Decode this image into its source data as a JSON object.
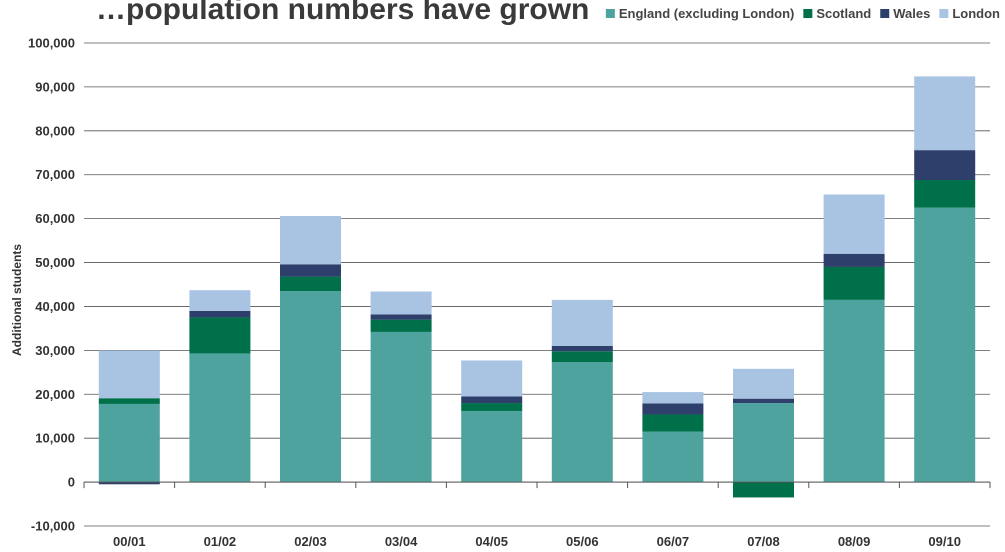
{
  "chart_data": {
    "type": "bar",
    "stacked": true,
    "title": "…population numbers have grown",
    "ylabel": "Additional students",
    "xlabel": "",
    "ylim": [
      -10000,
      100000
    ],
    "yticks": [
      -10000,
      0,
      10000,
      20000,
      30000,
      40000,
      50000,
      60000,
      70000,
      80000,
      90000,
      100000
    ],
    "ytick_labels": [
      "-10,000",
      "0",
      "10,000",
      "20,000",
      "30,000",
      "40,000",
      "50,000",
      "60,000",
      "70,000",
      "80,000",
      "90,000",
      "100,000"
    ],
    "grid": true,
    "legend_position": "top-right",
    "categories": [
      "00/01",
      "01/02",
      "02/03",
      "03/04",
      "04/05",
      "05/06",
      "06/07",
      "07/08",
      "08/09",
      "09/10"
    ],
    "series": [
      {
        "name": "England (excluding London)",
        "color": "#4fa39f",
        "values": [
          17800,
          29300,
          43500,
          34200,
          16200,
          27300,
          11500,
          18000,
          41500,
          62500
        ]
      },
      {
        "name": "Scotland",
        "color": "#00704a",
        "values": [
          1300,
          8200,
          3300,
          2800,
          1800,
          2500,
          3900,
          -3500,
          7500,
          6300
        ]
      },
      {
        "name": "Wales",
        "color": "#2e3f6b",
        "values": [
          -500,
          1500,
          2800,
          1200,
          1500,
          1200,
          2500,
          1000,
          3000,
          6800
        ]
      },
      {
        "name": "London",
        "color": "#a9c4e2",
        "values": [
          10900,
          4700,
          11000,
          5200,
          8200,
          10500,
          2600,
          6800,
          13500,
          16800
        ]
      }
    ]
  }
}
